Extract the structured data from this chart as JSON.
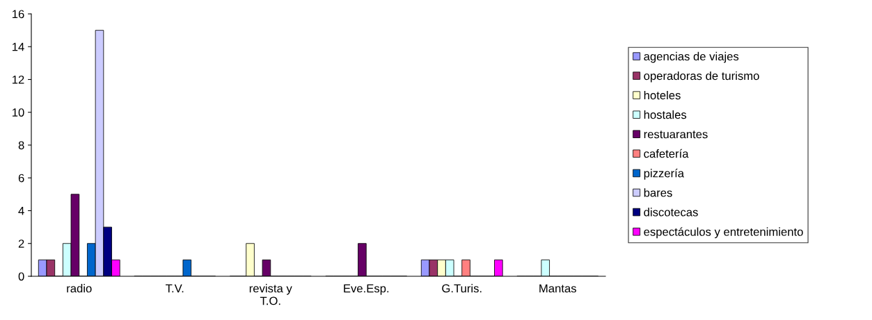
{
  "chart_data": {
    "type": "bar",
    "categories": [
      "radio",
      "T.V.",
      "revista y\nT.O.",
      "Eve.Esp.",
      "G.Turis.",
      "Mantas"
    ],
    "series": [
      {
        "name": "agencias de viajes",
        "color": "#9999ff",
        "values": [
          1,
          0,
          0,
          0,
          1,
          0
        ]
      },
      {
        "name": "operadoras de turismo",
        "color": "#993366",
        "values": [
          1,
          0,
          0,
          0,
          1,
          0
        ]
      },
      {
        "name": "hoteles",
        "color": "#ffffcc",
        "values": [
          0,
          0,
          2,
          0,
          1,
          0
        ]
      },
      {
        "name": "hostales",
        "color": "#ccffff",
        "values": [
          2,
          0,
          0,
          0,
          1,
          1
        ]
      },
      {
        "name": "restuarantes",
        "color": "#660066",
        "values": [
          5,
          0,
          1,
          2,
          0,
          0
        ]
      },
      {
        "name": "cafetería",
        "color": "#ff8080",
        "values": [
          0,
          0,
          0,
          0,
          1,
          0
        ]
      },
      {
        "name": "pizzería",
        "color": "#0066cc",
        "values": [
          2,
          1,
          0,
          0,
          0,
          0
        ]
      },
      {
        "name": "bares",
        "color": "#ccccff",
        "values": [
          15,
          0,
          0,
          0,
          0,
          0
        ]
      },
      {
        "name": "discotecas",
        "color": "#000080",
        "values": [
          3,
          0,
          0,
          0,
          0,
          0
        ]
      },
      {
        "name": "espectáculos y entretenimiento",
        "color": "#ff00ff",
        "values": [
          1,
          0,
          0,
          0,
          1,
          0
        ]
      }
    ],
    "ylim": [
      0,
      16
    ],
    "yticks": [
      0,
      2,
      4,
      6,
      8,
      10,
      12,
      14,
      16
    ],
    "grid": false,
    "legend": "right"
  }
}
